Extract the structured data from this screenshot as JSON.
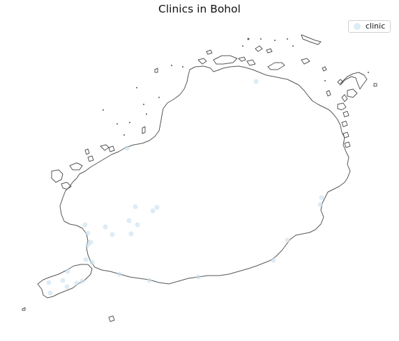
{
  "title": "Clinics in Bohol",
  "legend": {
    "label": "clinic"
  },
  "colors": {
    "outline": "#555555",
    "marker": "#c6e0ef"
  },
  "marker_opacity": 0.6
}
